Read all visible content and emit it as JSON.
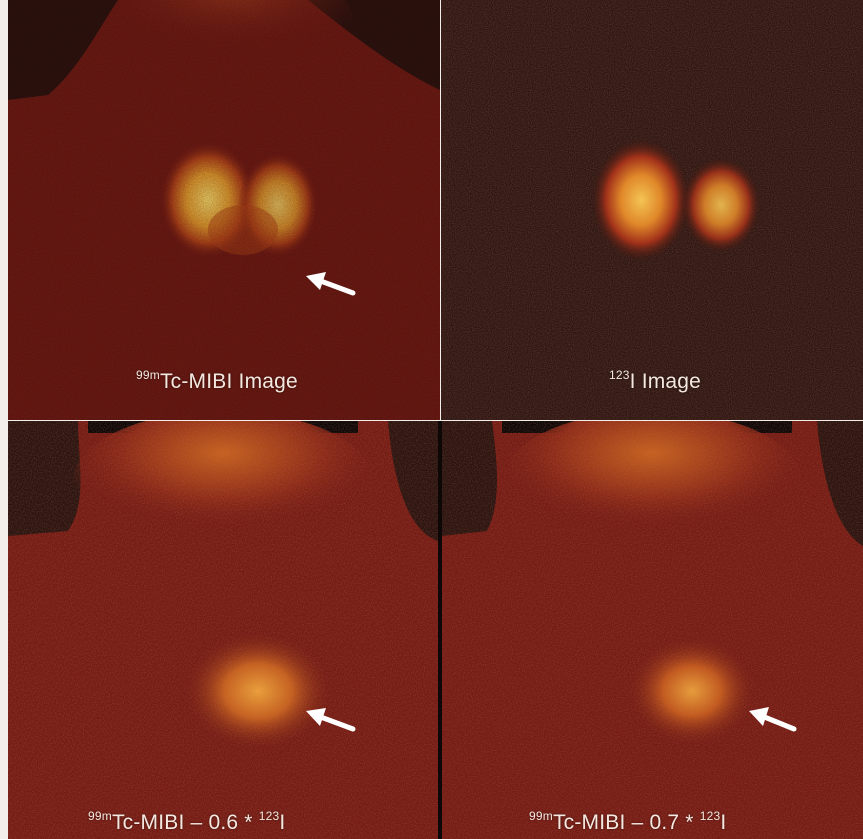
{
  "figure": {
    "panels": [
      {
        "id": "tc-mibi",
        "caption": {
          "iso": "99m",
          "text": "Tc-MIBI Image",
          "sup2": "",
          "tail": ""
        },
        "has_arrow": true
      },
      {
        "id": "i123",
        "caption": {
          "iso": "123",
          "text": "I Image",
          "sup2": "",
          "tail": ""
        },
        "has_arrow": false
      },
      {
        "id": "subtraction-06",
        "caption": {
          "iso": "99m",
          "text": "Tc-MIBI – 0.6 * ",
          "sup2": "123",
          "tail": "I"
        },
        "has_arrow": true
      },
      {
        "id": "subtraction-07",
        "caption": {
          "iso": "99m",
          "text": "Tc-MIBI – 0.7 * ",
          "sup2": "123",
          "tail": "I"
        },
        "has_arrow": true
      }
    ],
    "colors": {
      "background_tissue": "#6e1a14",
      "dark_background": "#2a1410",
      "hot_uptake": "#f0b23a",
      "warm_uptake": "#c25a1c",
      "arrow": "#ffffff"
    }
  }
}
